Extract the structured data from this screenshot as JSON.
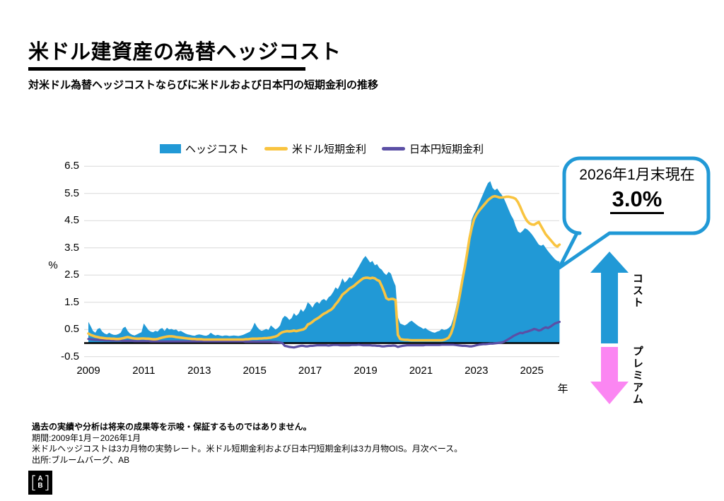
{
  "header": {
    "title": "米ドル建資産の為替ヘッジコスト",
    "subtitle": "対米ドル為替ヘッジコストならびに米ドルおよび日本円の短期金利の推移"
  },
  "callout": {
    "heading": "2026年1月末現在",
    "value": "3.0%",
    "border_color": "#2199D6"
  },
  "annotations": {
    "cost_label": "コスト",
    "premium_label": "プレミアム",
    "cost_color": "#2199D6",
    "premium_color": "#FB86F2"
  },
  "footnotes": {
    "disclaimer": "過去の実績や分析は将来の成果等を示唆・保証するものではありません。",
    "period": "期間:2009年1月－2026年1月",
    "methodology": "米ドルヘッジコストは3カ月物の実勢レート。米ドル短期金利および日本円短期金利は3カ月物OIS。月次ベース。",
    "source": "出所:ブルームバーグ、AB"
  },
  "logo": {
    "top": "A",
    "bottom": "B"
  },
  "chart_data": {
    "type": "area",
    "title": "対米ドル為替ヘッジコストならびに米ドルおよび日本円の短期金利の推移",
    "ylabel": "%",
    "xlabel": "年",
    "ylim": [
      -0.5,
      6.5
    ],
    "y_ticks": [
      6.5,
      5.5,
      4.5,
      3.5,
      2.5,
      1.5,
      0.5,
      -0.5
    ],
    "x_ticks": [
      2009,
      2011,
      2013,
      2015,
      2017,
      2019,
      2021,
      2023,
      2025
    ],
    "x_start_year": 2009,
    "x_end_year": 2026,
    "points_per_year": 12,
    "grid_on": true,
    "grid_color": "#D9D9D9",
    "zero_line_color": "#000000",
    "legend_position": "top",
    "series": [
      {
        "name": "ヘッジコスト",
        "type": "area",
        "color": "#2199D6",
        "values": [
          0.78,
          0.62,
          0.45,
          0.38,
          0.52,
          0.55,
          0.42,
          0.35,
          0.32,
          0.38,
          0.33,
          0.3,
          0.3,
          0.33,
          0.38,
          0.55,
          0.6,
          0.45,
          0.35,
          0.3,
          0.28,
          0.32,
          0.36,
          0.4,
          0.72,
          0.6,
          0.48,
          0.42,
          0.4,
          0.45,
          0.42,
          0.52,
          0.55,
          0.45,
          0.56,
          0.5,
          0.52,
          0.48,
          0.5,
          0.42,
          0.45,
          0.4,
          0.35,
          0.32,
          0.3,
          0.28,
          0.27,
          0.3,
          0.32,
          0.3,
          0.28,
          0.27,
          0.3,
          0.38,
          0.32,
          0.28,
          0.3,
          0.28,
          0.26,
          0.28,
          0.28,
          0.26,
          0.27,
          0.28,
          0.27,
          0.26,
          0.28,
          0.3,
          0.34,
          0.38,
          0.42,
          0.55,
          0.75,
          0.6,
          0.5,
          0.45,
          0.48,
          0.52,
          0.48,
          0.65,
          0.58,
          0.5,
          0.55,
          0.65,
          0.9,
          1.0,
          0.95,
          0.85,
          0.92,
          1.1,
          1.0,
          1.08,
          1.25,
          1.15,
          1.28,
          1.5,
          1.42,
          1.3,
          1.45,
          1.52,
          1.45,
          1.58,
          1.62,
          1.55,
          1.68,
          1.75,
          1.88,
          2.05,
          1.98,
          2.15,
          2.38,
          2.22,
          2.3,
          2.42,
          2.38,
          2.52,
          2.65,
          2.8,
          2.95,
          3.1,
          3.2,
          3.08,
          2.96,
          3.02,
          2.86,
          2.9,
          2.76,
          2.7,
          2.58,
          2.5,
          2.62,
          2.55,
          2.3,
          2.1,
          0.95,
          0.72,
          0.68,
          0.65,
          0.7,
          0.78,
          0.82,
          0.75,
          0.68,
          0.62,
          0.58,
          0.52,
          0.55,
          0.48,
          0.44,
          0.4,
          0.38,
          0.42,
          0.45,
          0.52,
          0.48,
          0.5,
          0.55,
          0.65,
          0.9,
          1.25,
          1.65,
          2.1,
          2.55,
          2.95,
          3.45,
          4.05,
          4.55,
          4.75,
          4.9,
          5.1,
          5.3,
          5.5,
          5.7,
          5.88,
          5.95,
          5.7,
          5.62,
          5.68,
          5.55,
          5.45,
          5.3,
          5.1,
          4.9,
          4.7,
          4.55,
          4.3,
          4.1,
          4.05,
          4.12,
          4.22,
          4.18,
          4.1,
          4.0,
          3.88,
          3.75,
          3.62,
          3.58,
          3.62,
          3.5,
          3.38,
          3.28,
          3.18,
          3.08,
          3.02,
          3.0
        ]
      },
      {
        "name": "米ドル短期金利",
        "type": "line",
        "color": "#F9C440",
        "values": [
          0.35,
          0.3,
          0.27,
          0.24,
          0.22,
          0.2,
          0.19,
          0.18,
          0.17,
          0.17,
          0.16,
          0.16,
          0.15,
          0.15,
          0.16,
          0.18,
          0.2,
          0.22,
          0.2,
          0.18,
          0.17,
          0.16,
          0.16,
          0.17,
          0.17,
          0.16,
          0.16,
          0.15,
          0.14,
          0.14,
          0.15,
          0.18,
          0.2,
          0.22,
          0.24,
          0.25,
          0.25,
          0.24,
          0.22,
          0.21,
          0.2,
          0.19,
          0.18,
          0.17,
          0.16,
          0.15,
          0.15,
          0.14,
          0.14,
          0.14,
          0.13,
          0.13,
          0.13,
          0.13,
          0.13,
          0.13,
          0.13,
          0.13,
          0.13,
          0.13,
          0.13,
          0.13,
          0.13,
          0.13,
          0.13,
          0.13,
          0.13,
          0.13,
          0.14,
          0.14,
          0.15,
          0.16,
          0.16,
          0.16,
          0.17,
          0.17,
          0.18,
          0.18,
          0.19,
          0.2,
          0.22,
          0.24,
          0.28,
          0.35,
          0.4,
          0.42,
          0.44,
          0.43,
          0.44,
          0.46,
          0.44,
          0.46,
          0.48,
          0.5,
          0.55,
          0.68,
          0.72,
          0.78,
          0.85,
          0.9,
          0.95,
          1.02,
          1.08,
          1.12,
          1.18,
          1.22,
          1.3,
          1.42,
          1.52,
          1.65,
          1.78,
          1.85,
          1.92,
          2.0,
          2.05,
          2.1,
          2.18,
          2.25,
          2.32,
          2.38,
          2.4,
          2.4,
          2.38,
          2.4,
          2.38,
          2.32,
          2.28,
          2.1,
          1.9,
          1.65,
          1.6,
          1.62,
          1.62,
          1.58,
          0.3,
          0.15,
          0.13,
          0.12,
          0.12,
          0.11,
          0.1,
          0.1,
          0.1,
          0.1,
          0.1,
          0.1,
          0.1,
          0.1,
          0.1,
          0.1,
          0.1,
          0.1,
          0.1,
          0.1,
          0.12,
          0.15,
          0.2,
          0.35,
          0.6,
          1.0,
          1.4,
          1.85,
          2.35,
          2.8,
          3.3,
          3.85,
          4.25,
          4.55,
          4.72,
          4.85,
          4.95,
          5.05,
          5.15,
          5.25,
          5.32,
          5.38,
          5.4,
          5.38,
          5.35,
          5.35,
          5.36,
          5.38,
          5.38,
          5.36,
          5.34,
          5.3,
          5.18,
          5.0,
          4.8,
          4.62,
          4.48,
          4.4,
          4.36,
          4.35,
          4.4,
          4.45,
          4.3,
          4.15,
          4.0,
          3.9,
          3.8,
          3.7,
          3.6,
          3.55,
          3.62
        ]
      },
      {
        "name": "日本円短期金利",
        "type": "line",
        "color": "#5B4FA5",
        "values": [
          0.15,
          0.14,
          0.13,
          0.12,
          0.12,
          0.11,
          0.11,
          0.1,
          0.1,
          0.1,
          0.09,
          0.09,
          0.09,
          0.09,
          0.09,
          0.08,
          0.08,
          0.08,
          0.08,
          0.08,
          0.07,
          0.07,
          0.07,
          0.07,
          0.07,
          0.07,
          0.07,
          0.06,
          0.06,
          0.06,
          0.06,
          0.06,
          0.06,
          0.06,
          0.06,
          0.06,
          0.06,
          0.06,
          0.06,
          0.06,
          0.06,
          0.06,
          0.06,
          0.06,
          0.06,
          0.06,
          0.06,
          0.06,
          0.06,
          0.06,
          0.06,
          0.06,
          0.06,
          0.06,
          0.06,
          0.06,
          0.06,
          0.06,
          0.06,
          0.06,
          0.06,
          0.06,
          0.06,
          0.06,
          0.06,
          0.06,
          0.06,
          0.06,
          0.05,
          0.05,
          0.05,
          0.05,
          0.05,
          0.05,
          0.05,
          0.05,
          0.05,
          0.05,
          0.05,
          0.05,
          0.04,
          0.04,
          0.03,
          0.02,
          0.0,
          -0.1,
          -0.12,
          -0.14,
          -0.15,
          -0.16,
          -0.14,
          -0.12,
          -0.1,
          -0.1,
          -0.12,
          -0.12,
          -0.1,
          -0.1,
          -0.09,
          -0.08,
          -0.08,
          -0.08,
          -0.08,
          -0.08,
          -0.09,
          -0.08,
          -0.07,
          -0.07,
          -0.07,
          -0.08,
          -0.08,
          -0.08,
          -0.08,
          -0.08,
          -0.07,
          -0.07,
          -0.07,
          -0.06,
          -0.07,
          -0.08,
          -0.08,
          -0.08,
          -0.08,
          -0.09,
          -0.09,
          -0.1,
          -0.1,
          -0.12,
          -0.12,
          -0.11,
          -0.1,
          -0.1,
          -0.09,
          -0.1,
          -0.14,
          -0.12,
          -0.1,
          -0.09,
          -0.08,
          -0.08,
          -0.08,
          -0.08,
          -0.08,
          -0.08,
          -0.08,
          -0.08,
          -0.07,
          -0.07,
          -0.07,
          -0.07,
          -0.07,
          -0.07,
          -0.07,
          -0.06,
          -0.06,
          -0.06,
          -0.06,
          -0.06,
          -0.06,
          -0.07,
          -0.08,
          -0.09,
          -0.1,
          -0.1,
          -0.11,
          -0.12,
          -0.12,
          -0.1,
          -0.08,
          -0.06,
          -0.05,
          -0.04,
          -0.04,
          -0.03,
          -0.02,
          -0.02,
          -0.01,
          0.0,
          0.01,
          0.02,
          0.05,
          0.1,
          0.15,
          0.2,
          0.26,
          0.3,
          0.34,
          0.38,
          0.36,
          0.4,
          0.42,
          0.45,
          0.48,
          0.52,
          0.5,
          0.46,
          0.48,
          0.54,
          0.58,
          0.55,
          0.6,
          0.66,
          0.72,
          0.75,
          0.78
        ]
      }
    ]
  }
}
